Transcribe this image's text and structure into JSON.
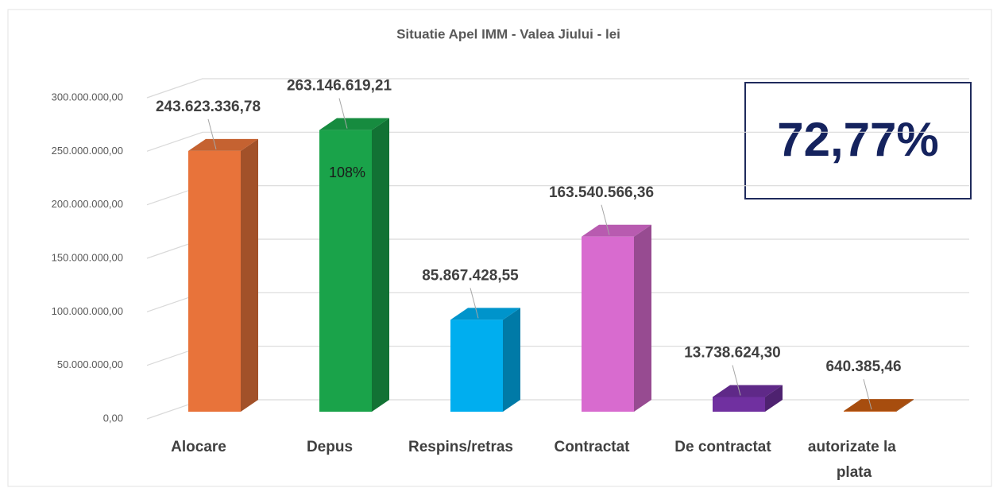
{
  "chart_data": {
    "type": "bar3d",
    "title": "Situatie Apel IMM - Valea Jiului - lei",
    "categories": [
      "Alocare",
      "Depus",
      "Respins/retras",
      "Contractat",
      "De contractat",
      "autorizate la plata"
    ],
    "values": [
      243623336.78,
      263146619.21,
      85867428.55,
      163540566.36,
      13738624.3,
      640385.46
    ],
    "value_labels": [
      "243.623.336,78",
      "263.146.619,21",
      "85.867.428,55",
      "163.540.566,36",
      "13.738.624,30",
      "640.385,46"
    ],
    "colors": [
      "#e8733a",
      "#1aa34a",
      "#00aeef",
      "#d86bcf",
      "#7030a0",
      "#c55a11"
    ],
    "ylim": [
      0,
      300000000
    ],
    "yticks": [
      {
        "value": 0,
        "label": "0,00"
      },
      {
        "value": 50000000,
        "label": "50.000.000,00"
      },
      {
        "value": 100000000,
        "label": "100.000.000,00"
      },
      {
        "value": 150000000,
        "label": "150.000.000,00"
      },
      {
        "value": 200000000,
        "label": "200.000.000,00"
      },
      {
        "value": 250000000,
        "label": "250.000.000,00"
      },
      {
        "value": 300000000,
        "label": "300.000.000,00"
      }
    ],
    "grid": true,
    "annotations": [
      "108%",
      "72,77%"
    ]
  }
}
